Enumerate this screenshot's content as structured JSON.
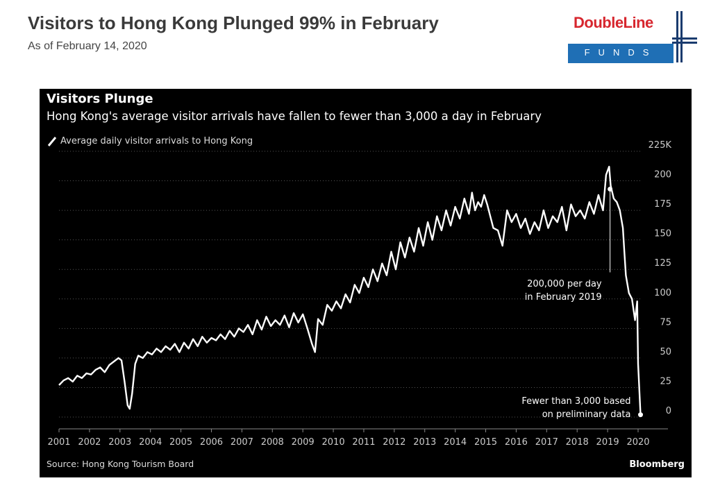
{
  "page": {
    "title": "Visitors to Hong Kong Plunged 99% in February",
    "subtitle": "As of February 14, 2020"
  },
  "logo": {
    "wordmark": "DoubleLine",
    "tagline": "FUNDS",
    "colors": {
      "red": "#d7262e",
      "blue": "#1f6fb5",
      "navy": "#1a3b6e"
    }
  },
  "chart_data": {
    "type": "line",
    "title": "Visitors Plunge",
    "subtitle": "Hong Kong's average visitor arrivals have fallen to fewer than 3,000 a day in February",
    "legend": "Average daily visitor arrivals to Hong Kong",
    "legend_position": "top-left",
    "source": "Source: Hong Kong Tourism Board",
    "brand": "Bloomberg",
    "ylabel_unit": "K",
    "ylim": [
      0,
      225
    ],
    "y_ticks": [
      0,
      25,
      50,
      75,
      100,
      125,
      150,
      175,
      200,
      225
    ],
    "y_tick_labels": [
      "0",
      "25",
      "50",
      "75",
      "100",
      "125",
      "150",
      "175",
      "200",
      "225K"
    ],
    "xlim": [
      2001,
      2020.3
    ],
    "x_ticks": [
      "2001",
      "2002",
      "2003",
      "2004",
      "2005",
      "2006",
      "2007",
      "2008",
      "2009",
      "2010",
      "2011",
      "2012",
      "2013",
      "2014",
      "2015",
      "2016",
      "2017",
      "2018",
      "2019",
      "2020"
    ],
    "grid": true,
    "colors": {
      "background": "#000000",
      "line": "#ffffff",
      "grid": "#555555",
      "text": "#ffffff",
      "axis_text": "#cccccc"
    },
    "annotations": [
      {
        "lines": [
          "200,000 per day",
          "in February 2019"
        ],
        "x": 2019.08,
        "y": 193
      },
      {
        "lines": [
          "Fewer than 3,000 based",
          "on preliminary data"
        ],
        "x": 2020.08,
        "y": 2
      }
    ],
    "series": [
      {
        "x": [
          2001.0,
          2001.15,
          2001.3,
          2001.45,
          2001.6,
          2001.75,
          2001.9,
          2002.05,
          2002.2,
          2002.35,
          2002.5,
          2002.65,
          2002.8,
          2002.95,
          2003.05,
          2003.15,
          2003.25,
          2003.32,
          2003.4,
          2003.5,
          2003.6,
          2003.75,
          2003.9,
          2004.05,
          2004.2,
          2004.35,
          2004.5,
          2004.65,
          2004.8,
          2004.95,
          2005.1,
          2005.25,
          2005.4,
          2005.55,
          2005.7,
          2005.85,
          2006.0,
          2006.15,
          2006.3,
          2006.45,
          2006.6,
          2006.75,
          2006.9,
          2007.05,
          2007.2,
          2007.35,
          2007.5,
          2007.65,
          2007.8,
          2007.95,
          2008.1,
          2008.25,
          2008.4,
          2008.55,
          2008.7,
          2008.85,
          2009.0,
          2009.15,
          2009.3,
          2009.4,
          2009.5,
          2009.65,
          2009.8,
          2009.95,
          2010.1,
          2010.25,
          2010.4,
          2010.55,
          2010.7,
          2010.85,
          2011.0,
          2011.15,
          2011.3,
          2011.45,
          2011.6,
          2011.75,
          2011.9,
          2012.05,
          2012.2,
          2012.35,
          2012.5,
          2012.65,
          2012.8,
          2012.95,
          2013.1,
          2013.25,
          2013.4,
          2013.55,
          2013.7,
          2013.85,
          2014.0,
          2014.15,
          2014.3,
          2014.45,
          2014.55,
          2014.65,
          2014.75,
          2014.85,
          2014.95,
          2015.05,
          2015.15,
          2015.25,
          2015.4,
          2015.55,
          2015.7,
          2015.85,
          2016.0,
          2016.15,
          2016.3,
          2016.45,
          2016.6,
          2016.75,
          2016.9,
          2017.05,
          2017.2,
          2017.35,
          2017.5,
          2017.65,
          2017.8,
          2017.95,
          2018.1,
          2018.25,
          2018.4,
          2018.55,
          2018.7,
          2018.85,
          2018.95,
          2019.05,
          2019.1,
          2019.2,
          2019.3,
          2019.4,
          2019.5,
          2019.55,
          2019.6,
          2019.7,
          2019.8,
          2019.9,
          2019.97,
          2020.0,
          2020.08
        ],
        "y": [
          27,
          31,
          33,
          30,
          35,
          33,
          37,
          36,
          40,
          42,
          38,
          44,
          47,
          50,
          48,
          30,
          10,
          7,
          20,
          45,
          52,
          50,
          55,
          53,
          58,
          55,
          60,
          57,
          62,
          55,
          63,
          58,
          66,
          60,
          68,
          63,
          67,
          65,
          70,
          66,
          73,
          68,
          75,
          72,
          78,
          70,
          82,
          74,
          85,
          77,
          82,
          78,
          86,
          76,
          88,
          80,
          87,
          75,
          62,
          55,
          83,
          78,
          95,
          90,
          98,
          92,
          104,
          97,
          112,
          105,
          118,
          110,
          125,
          115,
          130,
          120,
          140,
          125,
          148,
          135,
          152,
          140,
          160,
          145,
          165,
          150,
          170,
          158,
          175,
          162,
          178,
          168,
          185,
          172,
          190,
          175,
          182,
          178,
          188,
          180,
          170,
          160,
          158,
          145,
          175,
          165,
          172,
          160,
          168,
          155,
          165,
          158,
          175,
          160,
          170,
          165,
          178,
          158,
          180,
          170,
          175,
          168,
          182,
          172,
          188,
          175,
          205,
          212,
          196,
          185,
          182,
          175,
          160,
          140,
          120,
          105,
          100,
          82,
          98,
          45,
          2
        ]
      }
    ]
  }
}
